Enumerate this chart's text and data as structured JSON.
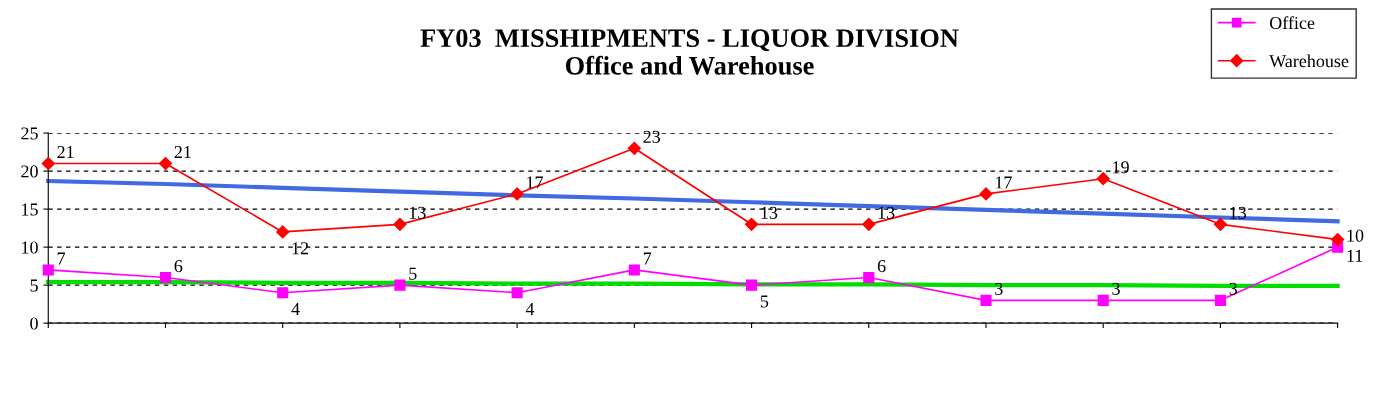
{
  "chart_data": {
    "type": "line",
    "title": "FY03  MISSHIPMENTS - LIQUOR DIVISION\nOffice and Warehouse",
    "categories": [
      null,
      null,
      null,
      null,
      null,
      null,
      null,
      null,
      null,
      null,
      null,
      null
    ],
    "series": [
      {
        "name": "Office",
        "color": "#ff00ff",
        "marker": "square",
        "values": [
          7,
          6,
          4,
          5,
          4,
          7,
          5,
          6,
          3,
          3,
          3,
          10
        ],
        "value_labels": [
          "7",
          "6",
          "4",
          "5",
          "4",
          "7",
          "5",
          "6",
          "3",
          "3",
          "3",
          "10"
        ]
      },
      {
        "name": "Warehouse",
        "color": "#ff0000",
        "marker": "diamond",
        "values": [
          21,
          21,
          12,
          13,
          17,
          23,
          13,
          13,
          17,
          19,
          13,
          11
        ],
        "value_labels": [
          "21",
          "21",
          "12",
          "13",
          "17",
          "23",
          "13",
          "13",
          "17",
          "19",
          "13",
          "11"
        ]
      },
      {
        "color": "#4169e1",
        "marker": "none",
        "values": [
          18.7,
          18.3,
          17.8,
          17.3,
          16.8,
          16.4,
          15.9,
          15.4,
          14.9,
          14.4,
          13.9,
          13.4
        ]
      },
      {
        "color": "#00dd00",
        "marker": "none",
        "values": [
          5.4,
          5.4,
          5.3,
          5.3,
          5.2,
          5.2,
          5.1,
          5.1,
          5.0,
          5.0,
          4.9,
          4.9
        ]
      }
    ],
    "ylim": [
      0,
      25
    ],
    "yticks": [
      0,
      5,
      10,
      15,
      20,
      25
    ],
    "grid": "y",
    "legend": "top right"
  }
}
